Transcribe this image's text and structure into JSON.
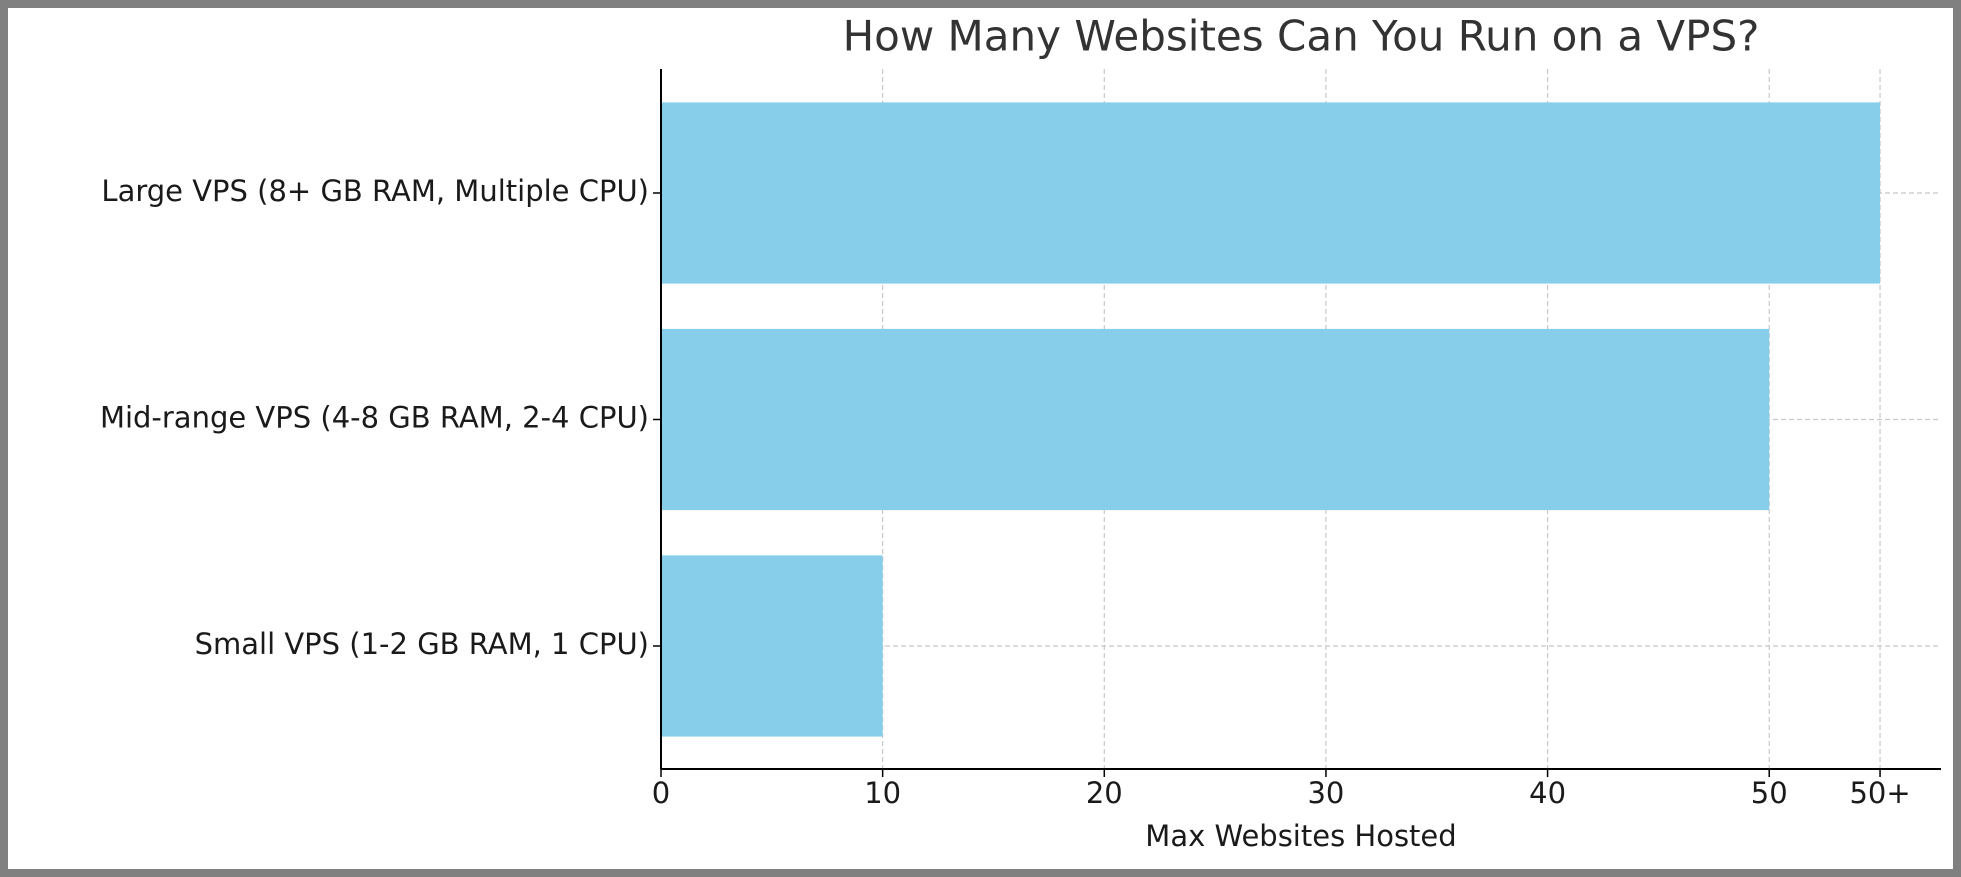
{
  "chart_data": {
    "type": "barh",
    "title": "How Many Websites Can You Run on a VPS?",
    "xlabel": "Max Websites Hosted",
    "categories": [
      "Small VPS (1-2 GB RAM, 1 CPU)",
      "Mid-range VPS (4-8 GB RAM, 2-4 CPU)",
      "Large VPS (8+ GB RAM, Multiple CPU)"
    ],
    "values": [
      10,
      50,
      55
    ],
    "color": "#87ceeb",
    "xlim": [
      0,
      57.75
    ],
    "xticks": [
      0,
      10,
      20,
      30,
      40,
      50,
      {
        "value": 55,
        "label": "50+"
      }
    ],
    "grid": true
  }
}
